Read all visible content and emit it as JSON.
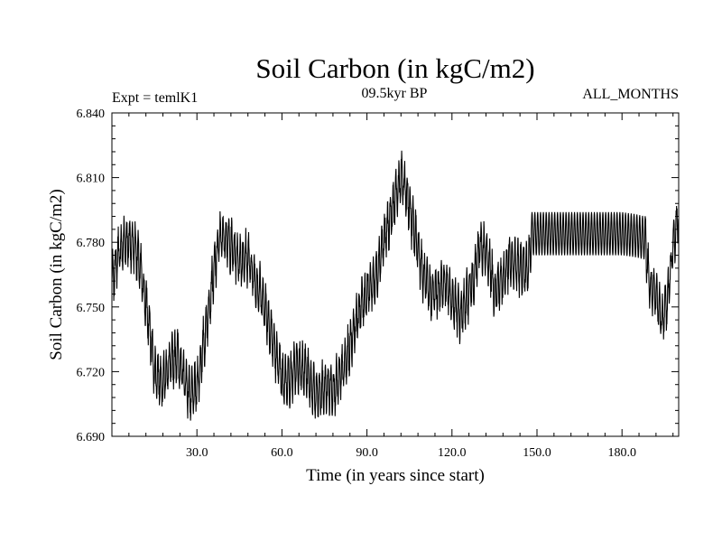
{
  "chart_data": {
    "type": "line",
    "title": "Soil Carbon (in kgC/m2)",
    "subtitle_left": "Expt = temlK1",
    "subtitle_center": "09.5kyr BP",
    "subtitle_right": "ALL_MONTHS",
    "xlabel": "Time (in years since start)",
    "ylabel": "Soil Carbon (in kgC/m2)",
    "xlim": [
      0,
      200
    ],
    "ylim": [
      6.69,
      6.84
    ],
    "x_ticks": [
      30,
      60,
      90,
      120,
      150,
      180
    ],
    "x_tick_labels": [
      "30.0",
      "60.0",
      "90.0",
      "120.0",
      "150.0",
      "180.0"
    ],
    "y_ticks": [
      6.69,
      6.72,
      6.75,
      6.78,
      6.81,
      6.84
    ],
    "y_tick_labels": [
      "6.690",
      "6.720",
      "6.750",
      "6.780",
      "6.810",
      "6.840"
    ],
    "grid": false,
    "line_color": "#000000",
    "seasonal_amplitude": 0.01,
    "series": [
      {
        "x": [
          0,
          2,
          5,
          8,
          10,
          13,
          15,
          18,
          20,
          23,
          25,
          28,
          30,
          33,
          35,
          38,
          40,
          43,
          45,
          48,
          50,
          53,
          55,
          57,
          60,
          63,
          65,
          68,
          70,
          72,
          75,
          78,
          80,
          83,
          85,
          88,
          90,
          93,
          95,
          98,
          100,
          102,
          104,
          106,
          108,
          110,
          113,
          115,
          118,
          120,
          123,
          125,
          128,
          130,
          133,
          135,
          138,
          140,
          143,
          145,
          147,
          148,
          150,
          155,
          160,
          165,
          170,
          175,
          180,
          185,
          188,
          189,
          190,
          192,
          194,
          196,
          198,
          200
        ],
        "y": [
          6.761,
          6.774,
          6.781,
          6.779,
          6.768,
          6.743,
          6.72,
          6.716,
          6.722,
          6.728,
          6.719,
          6.708,
          6.713,
          6.738,
          6.758,
          6.782,
          6.783,
          6.776,
          6.772,
          6.773,
          6.764,
          6.755,
          6.745,
          6.733,
          6.716,
          6.717,
          6.722,
          6.722,
          6.714,
          6.709,
          6.712,
          6.713,
          6.715,
          6.726,
          6.738,
          6.751,
          6.757,
          6.763,
          6.776,
          6.79,
          6.8,
          6.81,
          6.803,
          6.789,
          6.778,
          6.763,
          6.755,
          6.758,
          6.762,
          6.753,
          6.746,
          6.753,
          6.765,
          6.779,
          6.772,
          6.758,
          6.763,
          6.771,
          6.769,
          6.768,
          6.769,
          6.784,
          6.784,
          6.784,
          6.784,
          6.784,
          6.784,
          6.784,
          6.784,
          6.783,
          6.782,
          6.77,
          6.758,
          6.755,
          6.745,
          6.752,
          6.778,
          6.793
        ]
      }
    ]
  }
}
